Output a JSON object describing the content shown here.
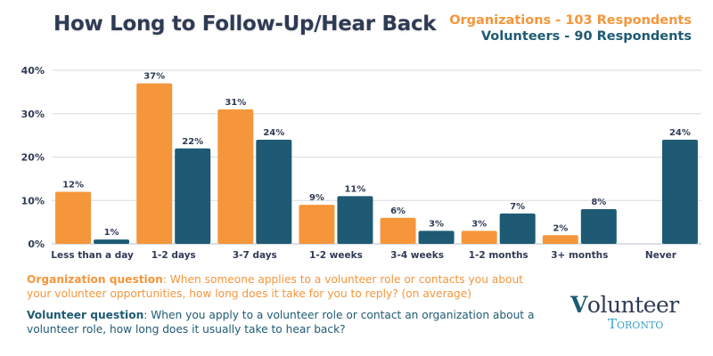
{
  "header": {
    "title": "How Long to Follow-Up/Hear Back",
    "legend_org": "Organizations - 103 Respondents",
    "legend_vol": "Volunteers - 90 Respondents"
  },
  "colors": {
    "organizations": "#f5963b",
    "volunteers": "#1e5a73",
    "text_dark": "#2f3b55",
    "grid": "#d9dbe3"
  },
  "chart_data": {
    "type": "bar",
    "title": "How Long to Follow-Up/Hear Back",
    "xlabel": "",
    "ylabel": "",
    "ylim": [
      0,
      40
    ],
    "yticks": [
      0,
      10,
      20,
      30,
      40
    ],
    "ytick_labels": [
      "0%",
      "10%",
      "20%",
      "30%",
      "40%"
    ],
    "grid": true,
    "legend_position": "top-right",
    "categories": [
      "Less than a day",
      "1-2 days",
      "3-7 days",
      "1-2 weeks",
      "3-4 weeks",
      "1-2 months",
      "3+ months",
      "Never"
    ],
    "series": [
      {
        "name": "Organizations - 103 Respondents",
        "color": "#f5963b",
        "values": [
          12,
          37,
          31,
          9,
          6,
          3,
          2,
          null
        ],
        "labels": [
          "12%",
          "37%",
          "31%",
          "9%",
          "6%",
          "3%",
          "2%",
          ""
        ]
      },
      {
        "name": "Volunteers - 90 Respondents",
        "color": "#1e5a73",
        "values": [
          1,
          22,
          24,
          11,
          3,
          7,
          8,
          24
        ],
        "labels": [
          "1%",
          "22%",
          "24%",
          "11%",
          "3%",
          "7%",
          "8%",
          "24%"
        ]
      }
    ]
  },
  "notes": {
    "org_label": "Organization question",
    "org_text": ": When someone applies to a volunteer role or contacts you about your volunteer opportunities, how long does it take for you to reply? (on average)",
    "vol_label": "Volunteer question",
    "vol_text": ": When you apply to a volunteer role or contact an organization about a volunteer role, how long does it usually take to hear back?"
  },
  "logo": {
    "v_letter": "V",
    "rest": "olunteer",
    "sub": "Toronto"
  }
}
